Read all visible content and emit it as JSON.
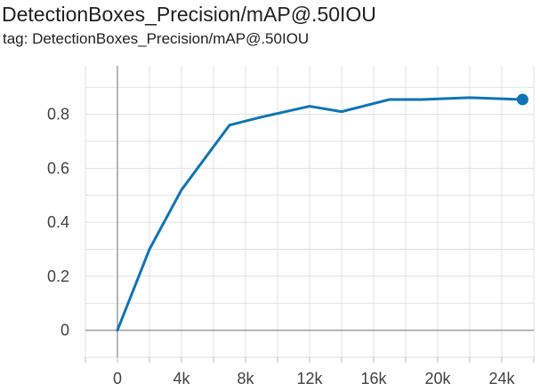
{
  "card": {
    "title": "DetectionBoxes_Precision/mAP@.50IOU",
    "tag": "tag: DetectionBoxes_Precision/mAP@.50IOU"
  },
  "chart_data": {
    "type": "line",
    "title": "DetectionBoxes_Precision/mAP@.50IOU",
    "xlabel": "",
    "ylabel": "",
    "xlim": [
      -2000,
      26000
    ],
    "ylim": [
      -0.1,
      0.98
    ],
    "x_ticks": [
      0,
      4000,
      8000,
      12000,
      16000,
      20000,
      24000
    ],
    "x_tick_labels": [
      "0",
      "4k",
      "8k",
      "12k",
      "16k",
      "20k",
      "24k"
    ],
    "y_ticks": [
      0,
      0.2,
      0.4,
      0.6,
      0.8
    ],
    "y_tick_labels": [
      "0",
      "0.2",
      "0.4",
      "0.6",
      "0.8"
    ],
    "grid": true,
    "series": [
      {
        "color": "#0f74b5",
        "x": [
          0,
          2000,
          4000,
          7000,
          9000,
          12000,
          14000,
          17000,
          19000,
          22000,
          25300
        ],
        "y": [
          0.0,
          0.3,
          0.52,
          0.76,
          0.79,
          0.83,
          0.81,
          0.855,
          0.855,
          0.862,
          0.855
        ]
      }
    ]
  }
}
